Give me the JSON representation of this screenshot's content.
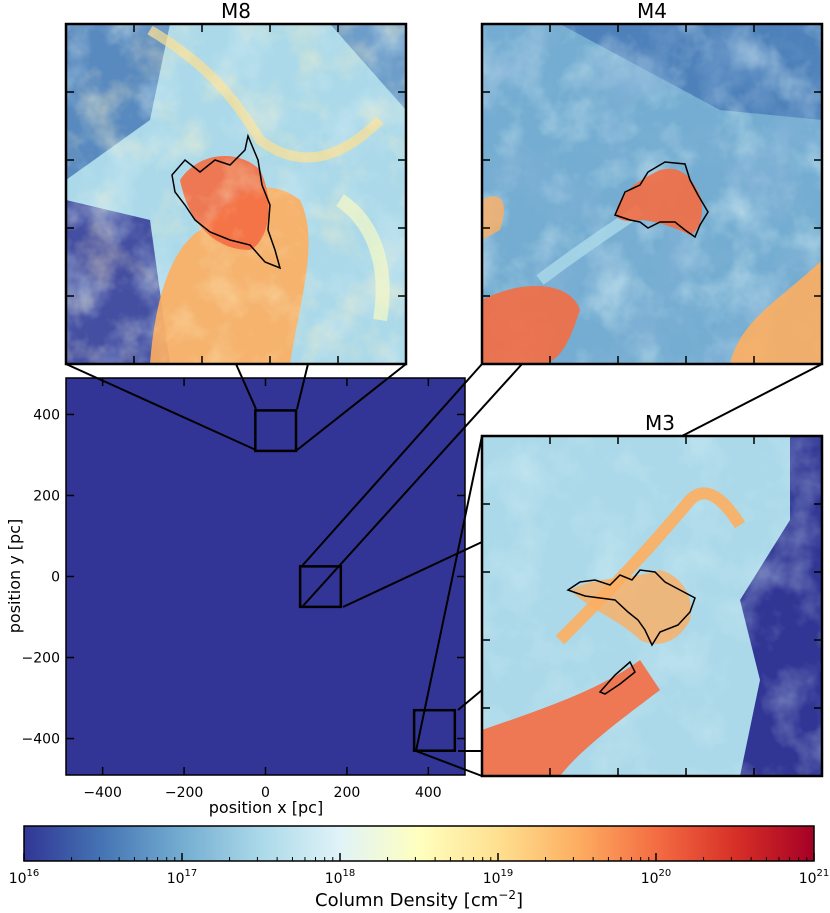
{
  "chart_data": [
    {
      "type": "heatmap",
      "panel": "main",
      "xlabel": "position x [pc]",
      "ylabel": "position y [pc]",
      "xlim": [
        -490,
        490
      ],
      "ylim": [
        -490,
        490
      ],
      "xticks": [
        -400,
        -200,
        0,
        200,
        400
      ],
      "yticks": [
        -400,
        -200,
        0,
        200,
        400
      ],
      "xtick_labels": [
        "−400",
        "−200",
        "0",
        "200",
        "400"
      ],
      "ytick_labels": [
        "−400",
        "−200",
        "0",
        "200",
        "400"
      ],
      "zoom_boxes": [
        {
          "name": "M8",
          "x": [
            -25,
            75
          ],
          "y": [
            310,
            410
          ]
        },
        {
          "name": "M4",
          "x": [
            85,
            185
          ],
          "y": [
            -75,
            25
          ]
        },
        {
          "name": "M3",
          "x": [
            365,
            465
          ],
          "y": [
            -430,
            -330
          ]
        }
      ]
    },
    {
      "type": "heatmap",
      "panel": "inset",
      "title": "M8"
    },
    {
      "type": "heatmap",
      "panel": "inset",
      "title": "M4"
    },
    {
      "type": "heatmap",
      "panel": "inset",
      "title": "M3"
    }
  ],
  "colorbar": {
    "label_main": "Column Density [cm",
    "label_sup": "−2",
    "label_end": "]",
    "scale": "log",
    "range": [
      1e+16,
      1e+21
    ],
    "ticks": [
      {
        "base": "10",
        "exp": "16",
        "value": 16
      },
      {
        "base": "10",
        "exp": "17",
        "value": 17
      },
      {
        "base": "10",
        "exp": "18",
        "value": 18
      },
      {
        "base": "10",
        "exp": "19",
        "value": 19
      },
      {
        "base": "10",
        "exp": "20",
        "value": 20
      },
      {
        "base": "10",
        "exp": "21",
        "value": 21
      }
    ],
    "colors": [
      "#313695",
      "#4575b4",
      "#74add1",
      "#abd9e9",
      "#e0f3f8",
      "#ffffbf",
      "#fee090",
      "#fdae61",
      "#f46d43",
      "#d73027",
      "#a50026"
    ]
  }
}
